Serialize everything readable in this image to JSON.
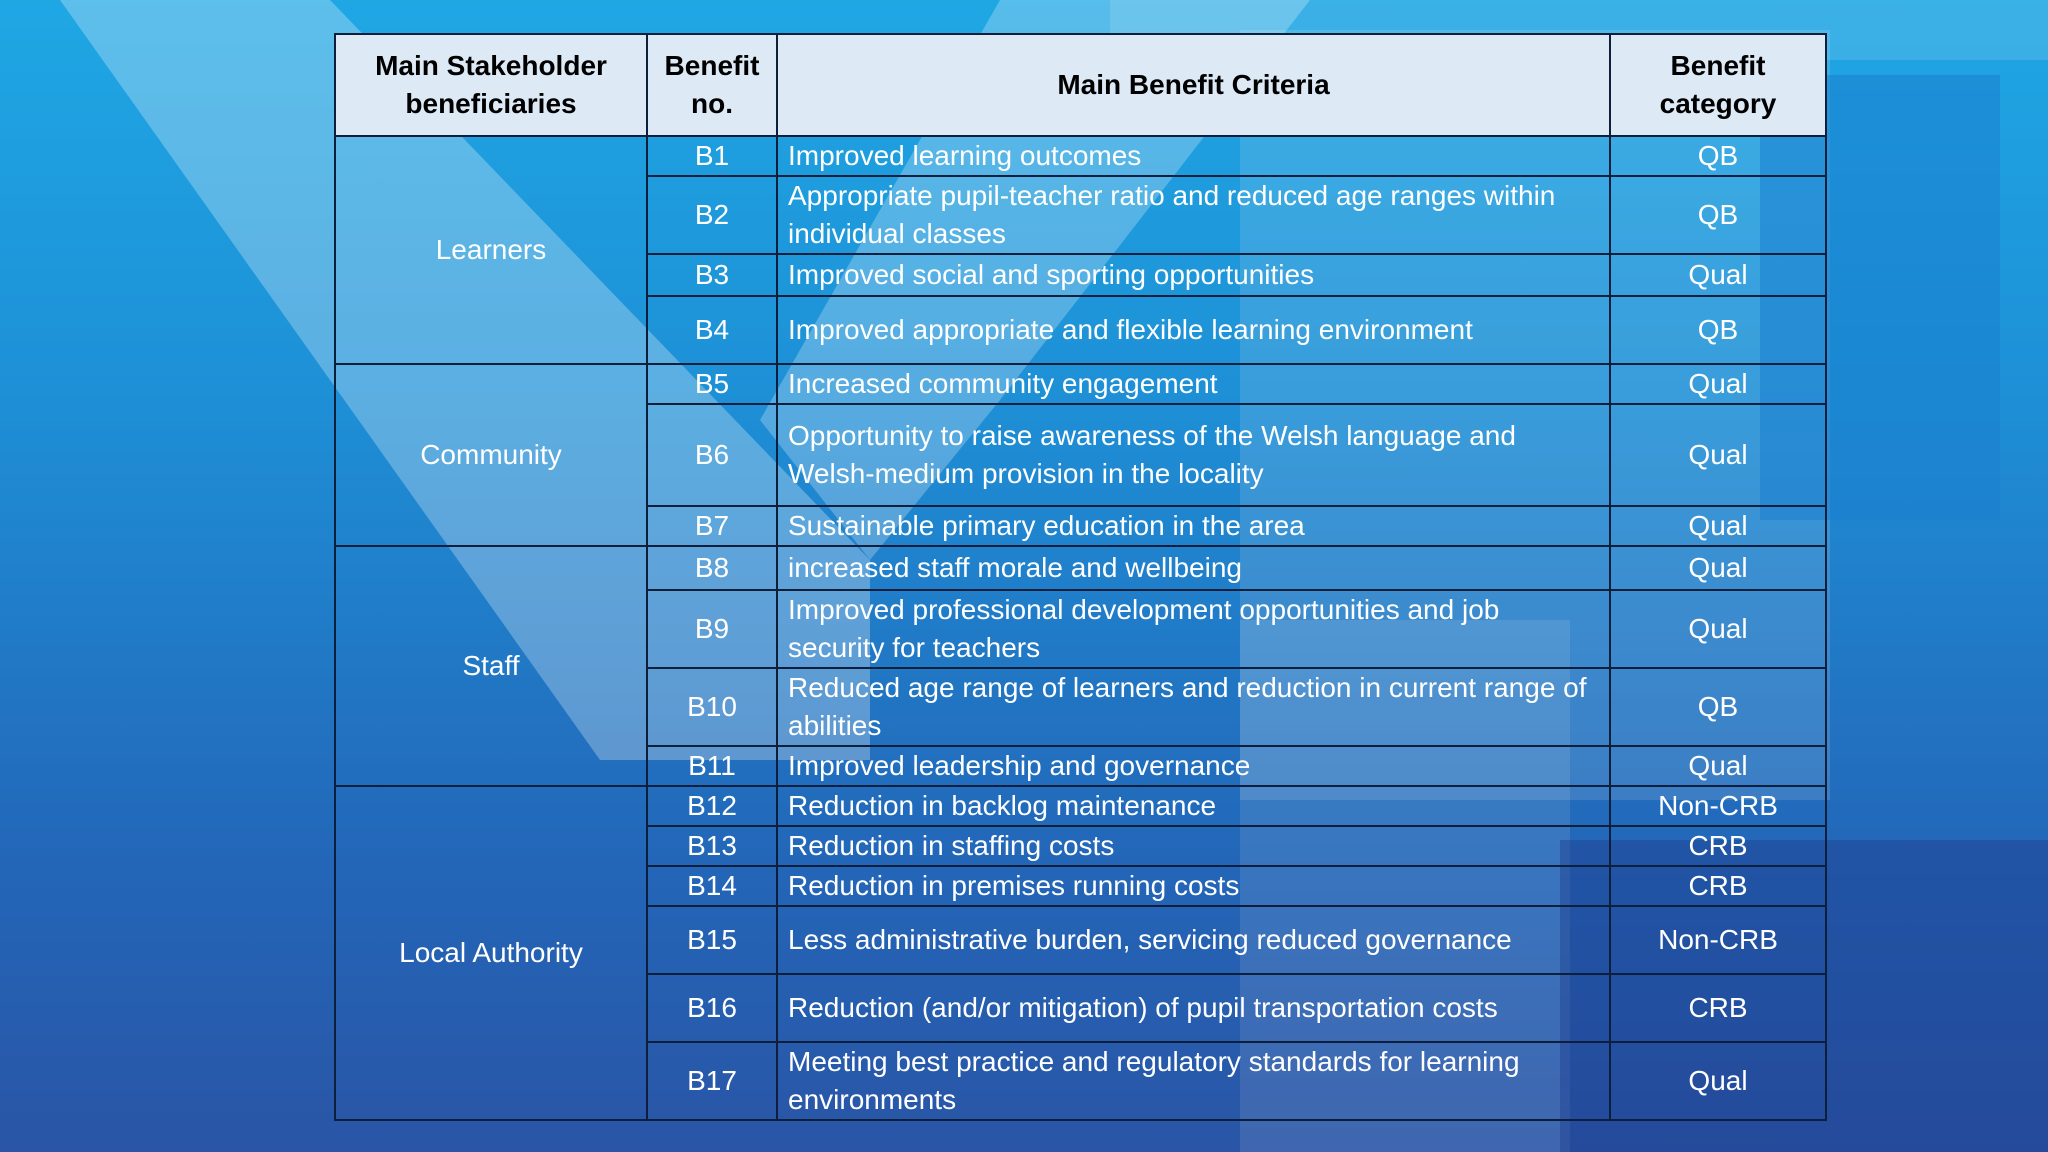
{
  "table": {
    "headers": {
      "stakeholder": "Main Stakeholder beneficiaries",
      "benefit_no": "Benefit no.",
      "criteria": "Main Benefit Criteria",
      "category": "Benefit category"
    },
    "groups": [
      {
        "stakeholder": "Learners",
        "rows": [
          {
            "no": "B1",
            "criteria": "Improved learning outcomes",
            "category": "QB"
          },
          {
            "no": "B2",
            "criteria": "Appropriate pupil-teacher ratio and reduced age ranges within individual classes",
            "category": "QB"
          },
          {
            "no": "B3",
            "criteria": "Improved social and sporting opportunities",
            "category": "Qual"
          },
          {
            "no": "B4",
            "criteria": "Improved appropriate and flexible learning environment",
            "category": "QB"
          }
        ]
      },
      {
        "stakeholder": "Community",
        "rows": [
          {
            "no": "B5",
            "criteria": "Increased community engagement",
            "category": "Qual"
          },
          {
            "no": "B6",
            "criteria": "Opportunity to raise awareness of the Welsh language and Welsh-medium provision in the locality",
            "category": "Qual"
          },
          {
            "no": "B7",
            "criteria": "Sustainable primary education in the area",
            "category": "Qual"
          }
        ]
      },
      {
        "stakeholder": "Staff",
        "rows": [
          {
            "no": "B8",
            "criteria": "increased staff morale and wellbeing",
            "category": "Qual"
          },
          {
            "no": "B9",
            "criteria": "Improved professional development opportunities and job security for teachers",
            "category": "Qual"
          },
          {
            "no": "B10",
            "criteria": "Reduced age range of learners and reduction in current range of abilities",
            "category": "QB"
          },
          {
            "no": "B11",
            "criteria": "Improved leadership and governance",
            "category": "Qual"
          }
        ]
      },
      {
        "stakeholder": "Local Authority",
        "rows": [
          {
            "no": "B12",
            "criteria": "Reduction in backlog maintenance",
            "category": "Non-CRB"
          },
          {
            "no": "B13",
            "criteria": "Reduction in staffing costs",
            "category": "CRB"
          },
          {
            "no": "B14",
            "criteria": "Reduction in premises running costs",
            "category": "CRB"
          },
          {
            "no": "B15",
            "criteria": "Less administrative burden, servicing reduced governance",
            "category": "Non-CRB"
          },
          {
            "no": "B16",
            "criteria": "Reduction (and/or mitigation) of pupil transportation costs",
            "category": "CRB"
          },
          {
            "no": "B17",
            "criteria": "Meeting best practice and regulatory standards for learning environments",
            "category": "Qual"
          }
        ]
      }
    ]
  },
  "colors": {
    "header_bg": "#dde9f5",
    "border": "#0d1f3a",
    "bg_top": "#1fa7e4",
    "bg_bottom": "#2a55a6"
  }
}
